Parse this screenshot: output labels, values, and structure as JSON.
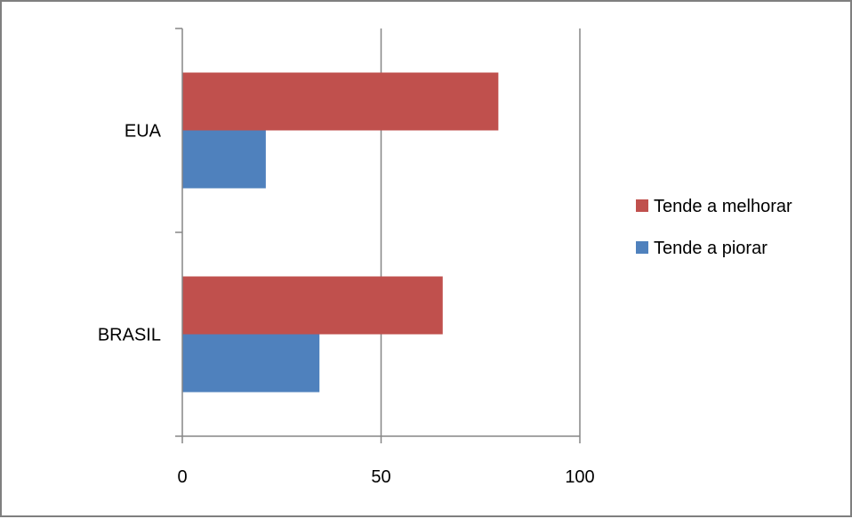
{
  "chart_data": {
    "type": "bar",
    "orientation": "horizontal",
    "categories": [
      "BRASIL",
      "EUA"
    ],
    "series": [
      {
        "name": "Tende a piorar",
        "values": [
          34.5,
          21
        ],
        "color": "#4f81bd"
      },
      {
        "name": "Tende a melhorar",
        "values": [
          65.5,
          79.5
        ],
        "color": "#c0504d"
      }
    ],
    "xlim": [
      0,
      100
    ],
    "x_ticks": [
      0,
      50,
      100
    ],
    "x_tick_labels": [
      "0",
      "50",
      "100"
    ],
    "title": "",
    "xlabel": "",
    "ylabel": "",
    "grid": "vertical major gridlines",
    "legend_position": "right",
    "legend_order": [
      "Tende a melhorar",
      "Tende a piorar"
    ]
  }
}
